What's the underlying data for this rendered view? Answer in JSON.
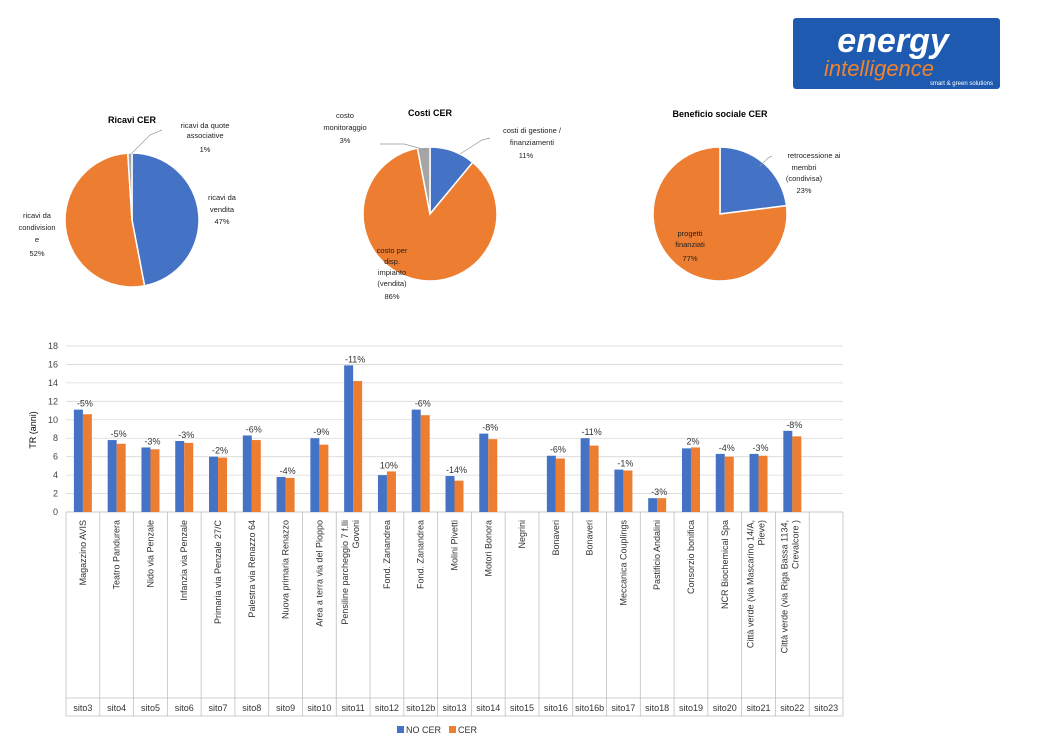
{
  "logo": {
    "line1": "energy",
    "line2": "intelligence",
    "tagline": "smart & green solutions",
    "bg_color": "#1e5bb0",
    "accent_color": "#f0822d"
  },
  "colors": {
    "blue": "#4472c4",
    "orange": "#ed7d31",
    "gray": "#a5a5a5"
  },
  "chart_data": [
    {
      "type": "pie",
      "title": "Ricavi CER",
      "slices": [
        {
          "label": "ricavi da vendita",
          "value": 47,
          "pct_label": "47%",
          "color": "#4472c4"
        },
        {
          "label": "ricavi da condivisione",
          "value": 52,
          "pct_label": "52%",
          "color": "#ed7d31"
        },
        {
          "label": "ricavi da quote associative",
          "value": 1,
          "pct_label": "1%",
          "color": "#a5a5a5"
        }
      ]
    },
    {
      "type": "pie",
      "title": "Costi CER",
      "slices": [
        {
          "label": "costi di gestione / finanziamenti",
          "value": 11,
          "pct_label": "11%",
          "color": "#4472c4"
        },
        {
          "label": "costo per disp. impianto (vendita)",
          "value": 86,
          "pct_label": "86%",
          "color": "#ed7d31"
        },
        {
          "label": "costo monitoraggio",
          "value": 3,
          "pct_label": "3%",
          "color": "#a5a5a5"
        }
      ]
    },
    {
      "type": "pie",
      "title": "Beneficio sociale CER",
      "slices": [
        {
          "label": "retrocessione ai membri (condivisa)",
          "value": 23,
          "pct_label": "23%",
          "color": "#4472c4"
        },
        {
          "label": "progetti finanziati",
          "value": 77,
          "pct_label": "77%",
          "color": "#ed7d31"
        }
      ]
    },
    {
      "type": "bar",
      "ylabel": "TR (anni)",
      "ylim": [
        0,
        18
      ],
      "yticks": [
        "0",
        "2",
        "4",
        "6",
        "8",
        "10",
        "12",
        "14",
        "16",
        "18"
      ],
      "grid": true,
      "legend_position": "bottom",
      "series": [
        {
          "name": "NO CER",
          "color": "#4472c4",
          "values": [
            11.1,
            7.8,
            7.0,
            7.7,
            6.0,
            8.3,
            3.8,
            8.0,
            15.9,
            4.0,
            11.1,
            3.9,
            8.5,
            null,
            6.1,
            8.0,
            4.6,
            1.5,
            6.9,
            6.3,
            6.3,
            8.8,
            null
          ]
        },
        {
          "name": "CER",
          "color": "#ed7d31",
          "values": [
            10.6,
            7.4,
            6.8,
            7.5,
            5.9,
            7.8,
            3.7,
            7.3,
            14.2,
            4.4,
            10.5,
            3.4,
            7.9,
            null,
            5.8,
            7.2,
            4.5,
            1.5,
            7.0,
            6.0,
            6.1,
            8.2,
            null
          ]
        }
      ],
      "labels": [
        "-5%",
        "-5%",
        "-3%",
        "-3%",
        "-2%",
        "-6%",
        "-4%",
        "-9%",
        "-11%",
        "10%",
        "-6%",
        "-14%",
        "-8%",
        "",
        "-6%",
        "-11%",
        "-1%",
        "-3%",
        "2%",
        "-4%",
        "-3%",
        "-8%",
        ""
      ],
      "categories": [
        {
          "name": "Magazzino AVIS",
          "site": "sito3"
        },
        {
          "name": "Teatro Pandurera",
          "site": "sito4"
        },
        {
          "name": "Nido via Penzale",
          "site": "sito5"
        },
        {
          "name": "Infanzia via Penzale",
          "site": "sito6"
        },
        {
          "name": "Primaria via Penzale 27/C",
          "site": "sito7"
        },
        {
          "name": "Palestra via Renazzo 64",
          "site": "sito8"
        },
        {
          "name": "Nuova primaria Renazzo",
          "site": "sito9"
        },
        {
          "name": "Area a terra via del Pioppo",
          "site": "sito10"
        },
        {
          "name": "Pensiline parcheggio 7 f.lli Govoni",
          "site": "sito11"
        },
        {
          "name": "Fond. Zanandrea",
          "site": "sito12"
        },
        {
          "name": "Fond. Zanandrea",
          "site": "sito12b"
        },
        {
          "name": "Molini Pivetti",
          "site": "sito13"
        },
        {
          "name": "Motori Bonora",
          "site": "sito14"
        },
        {
          "name": "Negrini",
          "site": "sito15"
        },
        {
          "name": "Bonaveri",
          "site": "sito16"
        },
        {
          "name": "Bonaveri",
          "site": "sito16b"
        },
        {
          "name": "Meccanica Couplings",
          "site": "sito17"
        },
        {
          "name": "Pastificio Andalini",
          "site": "sito18"
        },
        {
          "name": "Consorzio bonifica",
          "site": "sito19"
        },
        {
          "name": "NCR Biochemical Spa",
          "site": "sito20"
        },
        {
          "name": "Città verde (via Mascarino 14/A, Pieve)",
          "site": "sito21"
        },
        {
          "name": "Città verde (via Riga Bassa 1134, Crevalcore )",
          "site": "sito22"
        },
        {
          "name": "",
          "site": "sito23"
        }
      ]
    }
  ]
}
